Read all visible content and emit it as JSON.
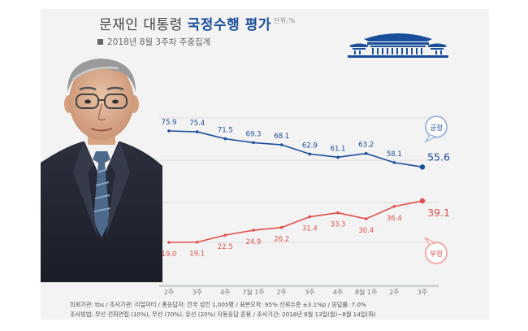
{
  "header": {
    "title_prefix": "문재인 대통령 ",
    "title_accent": "국정수행 평가",
    "unit": "단위:%",
    "subtitle": "2018년 8월 3주차 주중집계"
  },
  "chart_data": {
    "type": "line",
    "categories": [
      "2주",
      "3주",
      "4주",
      "7월 1주",
      "2주",
      "3주",
      "4주",
      "8월 1주",
      "2주",
      "3주"
    ],
    "series": [
      {
        "name": "긍정",
        "color": "#1a4e9a",
        "values": [
          75.9,
          75.4,
          71.5,
          69.3,
          68.1,
          62.9,
          61.1,
          63.2,
          58.1,
          55.6
        ],
        "labels": [
          "75.9",
          "75.4",
          "71.5",
          "69.3",
          "68.1",
          "62.9",
          "61.1",
          "63.2",
          "58.1",
          "55.6"
        ]
      },
      {
        "name": "부정",
        "color": "#e0504a",
        "values": [
          19.0,
          19.1,
          22.5,
          24.9,
          26.2,
          31.4,
          33.3,
          30.4,
          36.4,
          39.1
        ],
        "labels": [
          "19.0",
          "19.1",
          "22.5",
          "24.9",
          "26.2",
          "31.4",
          "33.3",
          "30.4",
          "36.4",
          "39.1"
        ]
      }
    ],
    "gridlines": true,
    "legend": "callout bubbles at line ends"
  },
  "footnotes": {
    "line1": "의뢰기관: tbs / 조사기관: 리얼미터 / 총응답자: 전국 성인 1,005명 / 표본오차: 95% 신뢰수준 ±3.1%p / 응답률: 7.0%",
    "line2": "조사방법: 무선 전화면접 (10%), 무선 (70%), 유선 (20%) 자동응답 혼용 / 조사기간: 2018년 8월 13일(월)~8월 14일(화)"
  },
  "colors": {
    "positive": "#1a4e9a",
    "negative": "#e0504a",
    "panel": "#f3f3f3",
    "grid": "#d6d6d6"
  },
  "icons": {
    "logo": "blue-house-icon",
    "portrait": "portrait-photo"
  }
}
